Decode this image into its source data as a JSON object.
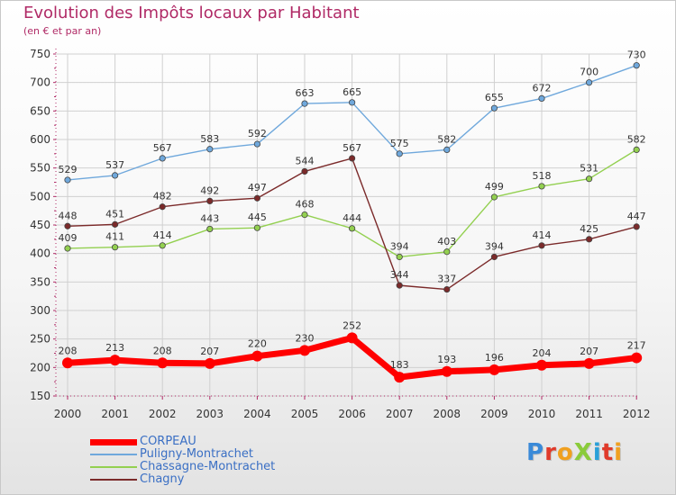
{
  "title": "Evolution des Impôts locaux par Habitant",
  "subtitle": "(en € et par an)",
  "logo": {
    "text": "ProXiti",
    "colors": [
      "#3a8ad8",
      "#e03a2a",
      "#f0a020",
      "#8acb3a",
      "#2aa0d8",
      "#e03a2a",
      "#f0a020"
    ]
  },
  "chart_data": {
    "type": "line",
    "x": [
      "2000",
      "2001",
      "2002",
      "2003",
      "2004",
      "2005",
      "2006",
      "2007",
      "2008",
      "2009",
      "2010",
      "2011",
      "2012"
    ],
    "ylim": [
      150,
      750
    ],
    "yticks": [
      150,
      200,
      250,
      300,
      350,
      400,
      450,
      500,
      550,
      600,
      650,
      700,
      750
    ],
    "grid": true,
    "legend_position": "bottom-left",
    "series": [
      {
        "name": "CORPEAU",
        "color": "#ff0000",
        "values": [
          208,
          213,
          208,
          207,
          220,
          230,
          252,
          183,
          193,
          196,
          204,
          207,
          217
        ]
      },
      {
        "name": "Puligny-Montrachet",
        "color": "#6fa8dc",
        "values": [
          529,
          537,
          567,
          583,
          592,
          663,
          665,
          575,
          582,
          655,
          672,
          700,
          730
        ]
      },
      {
        "name": "Chassagne-Montrachet",
        "color": "#93d050",
        "values": [
          409,
          411,
          414,
          443,
          445,
          468,
          444,
          394,
          403,
          499,
          518,
          531,
          582
        ]
      },
      {
        "name": "Chagny",
        "color": "#7b2a2a",
        "values": [
          448,
          451,
          482,
          492,
          497,
          544,
          567,
          344,
          337,
          394,
          414,
          425,
          447
        ]
      }
    ]
  }
}
